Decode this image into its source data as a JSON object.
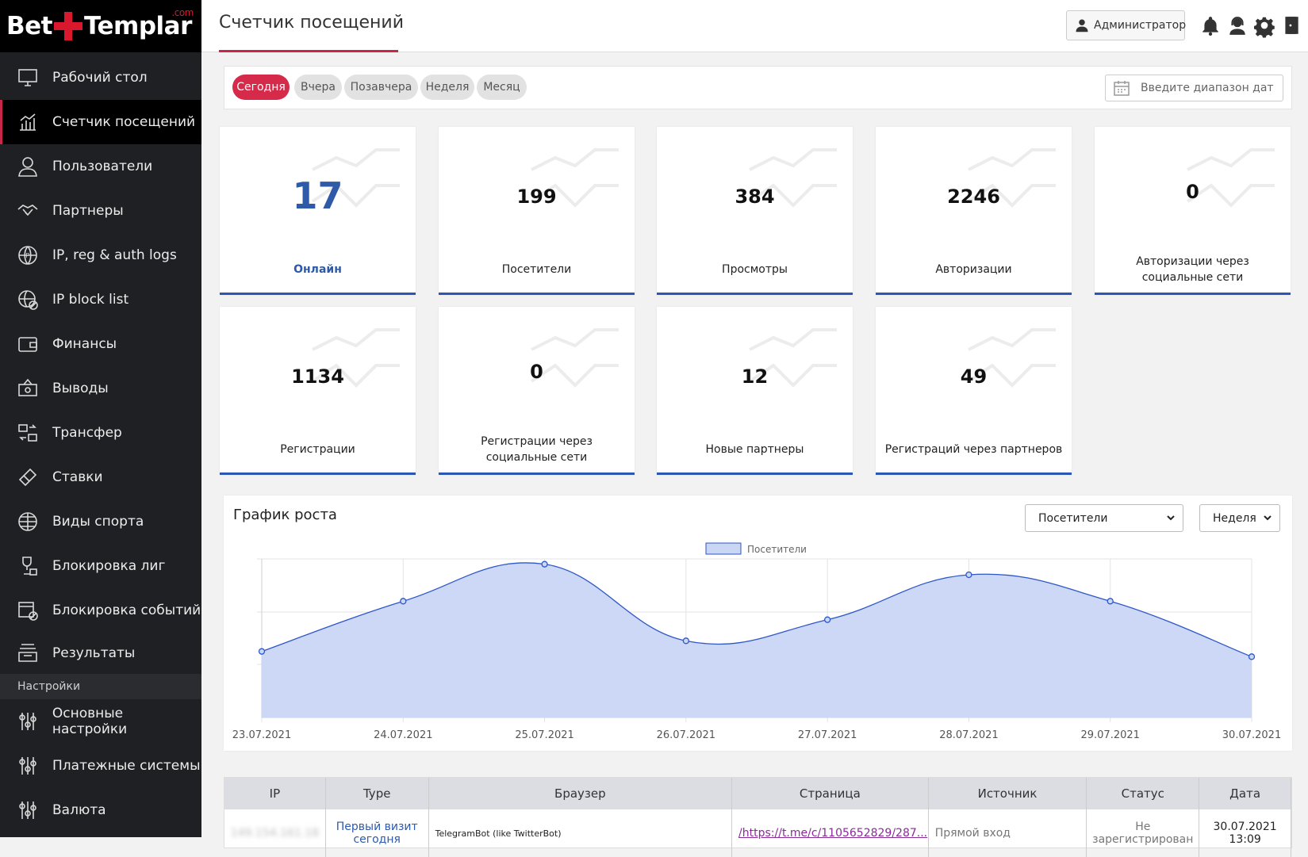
{
  "logo": {
    "name_left": "Bet",
    "name_right": "Templar",
    "suffix": ".com"
  },
  "header": {
    "title": "Счетчик посещений",
    "admin_label": "Администратор",
    "icons": [
      "bell-icon",
      "support-agent-icon",
      "gear-icon",
      "logout-door-icon"
    ]
  },
  "sidebar": {
    "items": [
      {
        "label": "Рабочий стол",
        "icon": "desktop-icon"
      },
      {
        "label": "Счетчик посещений",
        "icon": "bar-chart-icon",
        "active": true
      },
      {
        "label": "Пользователи",
        "icon": "user-icon"
      },
      {
        "label": "Партнеры",
        "icon": "handshake-icon"
      },
      {
        "label": "IP, reg & auth logs",
        "icon": "ip-globe-icon"
      },
      {
        "label": "IP block list",
        "icon": "ip-block-icon"
      },
      {
        "label": "Финансы",
        "icon": "wallet-icon"
      },
      {
        "label": "Выводы",
        "icon": "cash-icon"
      },
      {
        "label": "Трансфер",
        "icon": "transfer-icon"
      },
      {
        "label": "Ставки",
        "icon": "ticket-icon"
      },
      {
        "label": "Виды спорта",
        "icon": "globe-icon"
      },
      {
        "label": "Блокировка лиг",
        "icon": "trophy-lock-icon"
      },
      {
        "label": "Блокировка событий",
        "icon": "event-block-icon"
      },
      {
        "label": "Результаты",
        "icon": "tray-icon"
      }
    ],
    "section_label": "Настройки",
    "settings_items": [
      {
        "label": "Основные настройки",
        "icon": "sliders-icon"
      },
      {
        "label": "Платежные системы",
        "icon": "sliders-icon"
      },
      {
        "label": "Валюта",
        "icon": "sliders-icon"
      }
    ]
  },
  "filters": {
    "periods": [
      "Сегодня",
      "Вчера",
      "Позавчера",
      "Неделя",
      "Месяц"
    ],
    "active_period": "Сегодня",
    "date_range_placeholder": "Введите диапазон дат"
  },
  "stats": [
    {
      "value": "17",
      "label": "Онлайн"
    },
    {
      "value": "199",
      "label": "Посетители"
    },
    {
      "value": "384",
      "label": "Просмотры"
    },
    {
      "value": "2246",
      "label": "Авторизации"
    },
    {
      "value": "0",
      "label": "Авторизации через социальные сети"
    },
    {
      "value": "1134",
      "label": "Регистрации"
    },
    {
      "value": "0",
      "label": "Регистрации через социальные сети"
    },
    {
      "value": "12",
      "label": "Новые партнеры"
    },
    {
      "value": "49",
      "label": "Регистраций через партнеров"
    }
  ],
  "chart_panel": {
    "title": "График роста",
    "metric_select": "Посетители",
    "period_select": "Неделя"
  },
  "chart_data": {
    "type": "area",
    "categories": [
      "23.07.2021",
      "24.07.2021",
      "25.07.2021",
      "26.07.2021",
      "27.07.2021",
      "28.07.2021",
      "29.07.2021",
      "30.07.2021"
    ],
    "series": [
      {
        "name": "Посетители",
        "values": [
          203,
          222,
          236,
          207,
          215,
          232,
          222,
          201
        ]
      }
    ],
    "ylim": [
      178,
      238
    ],
    "grid": true,
    "legend": "top-center",
    "colors": {
      "fill": "#c9d6f4",
      "stroke": "#2d56c9"
    }
  },
  "table": {
    "headers": [
      "IP",
      "Type",
      "Браузер",
      "Страница",
      "Источник",
      "Статус",
      "Дата"
    ],
    "rows": [
      {
        "ip": "149.154.161.18",
        "type": "Первый визит сегодня",
        "browser": "TelegramBot (like TwitterBot)",
        "page": "/https://t.me/c/1105652829/287...",
        "source": "Прямой вход",
        "status": "Не зарегистрирован",
        "date": "30.07.2021 13:09"
      }
    ]
  }
}
